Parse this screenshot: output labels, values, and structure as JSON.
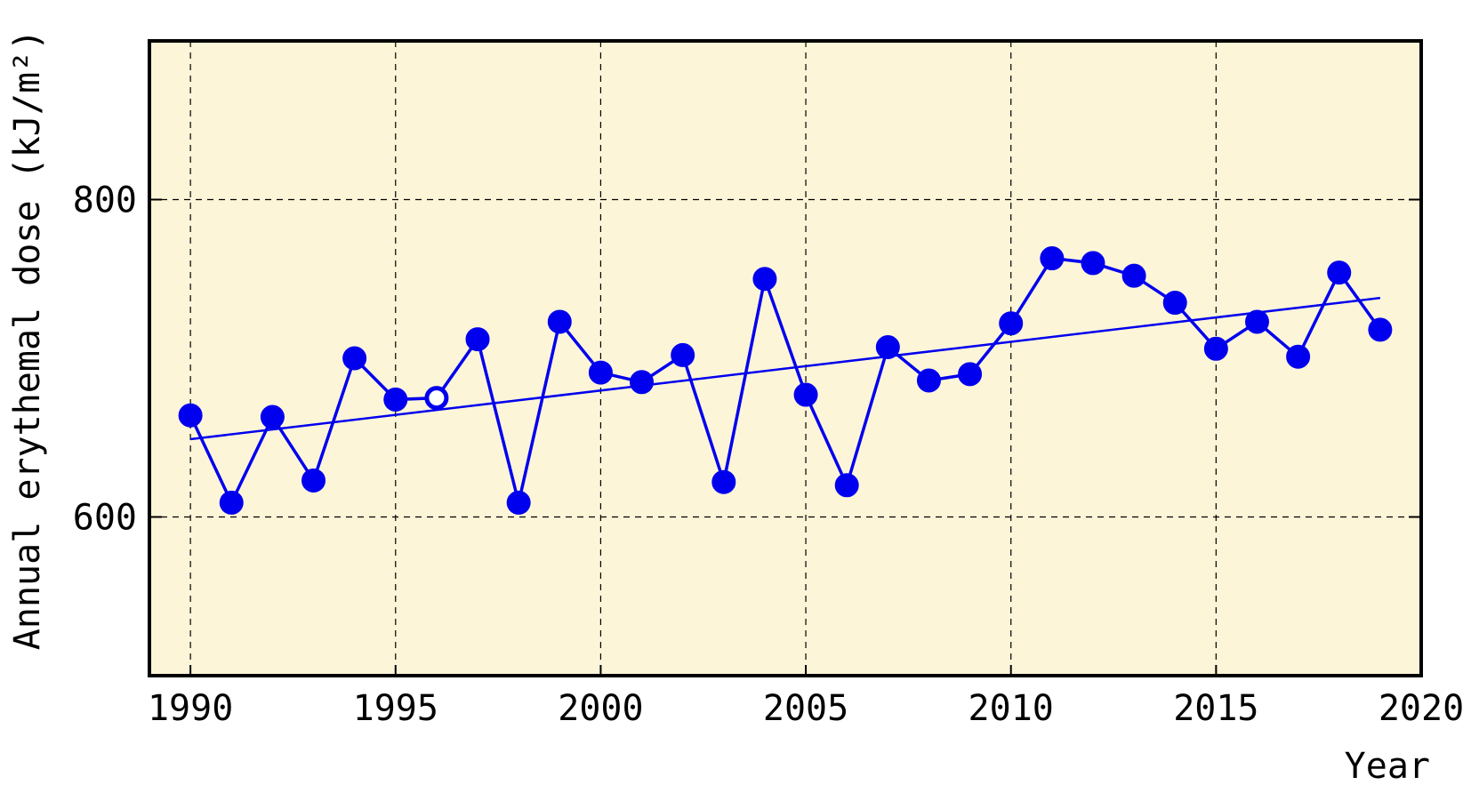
{
  "chart_data": {
    "type": "line",
    "title": "",
    "xlabel": "Year",
    "ylabel": "Annual erythemal dose (kJ/m²)",
    "xlim": [
      1989,
      2020
    ],
    "ylim": [
      500,
      900
    ],
    "x_ticks": [
      1990,
      1995,
      2000,
      2005,
      2010,
      2015,
      2020
    ],
    "y_ticks": [
      600,
      800
    ],
    "grid": true,
    "background_color": "#fdf5d8",
    "series_color": "#0000ee",
    "x": [
      1990,
      1991,
      1992,
      1993,
      1994,
      1995,
      1996,
      1997,
      1998,
      1999,
      2000,
      2001,
      2002,
      2003,
      2004,
      2005,
      2006,
      2007,
      2008,
      2009,
      2010,
      2011,
      2012,
      2013,
      2014,
      2015,
      2016,
      2017,
      2018,
      2019
    ],
    "values": [
      664,
      609,
      663,
      623,
      700,
      674,
      675,
      712,
      609,
      723,
      691,
      685,
      702,
      622,
      750,
      677,
      620,
      707,
      686,
      690,
      722,
      763,
      760,
      752,
      735,
      706,
      723,
      701,
      754,
      718
    ],
    "open_marker_years": [
      1996
    ],
    "trend": {
      "x": [
        1990,
        2019
      ],
      "y": [
        649,
        738
      ]
    }
  }
}
